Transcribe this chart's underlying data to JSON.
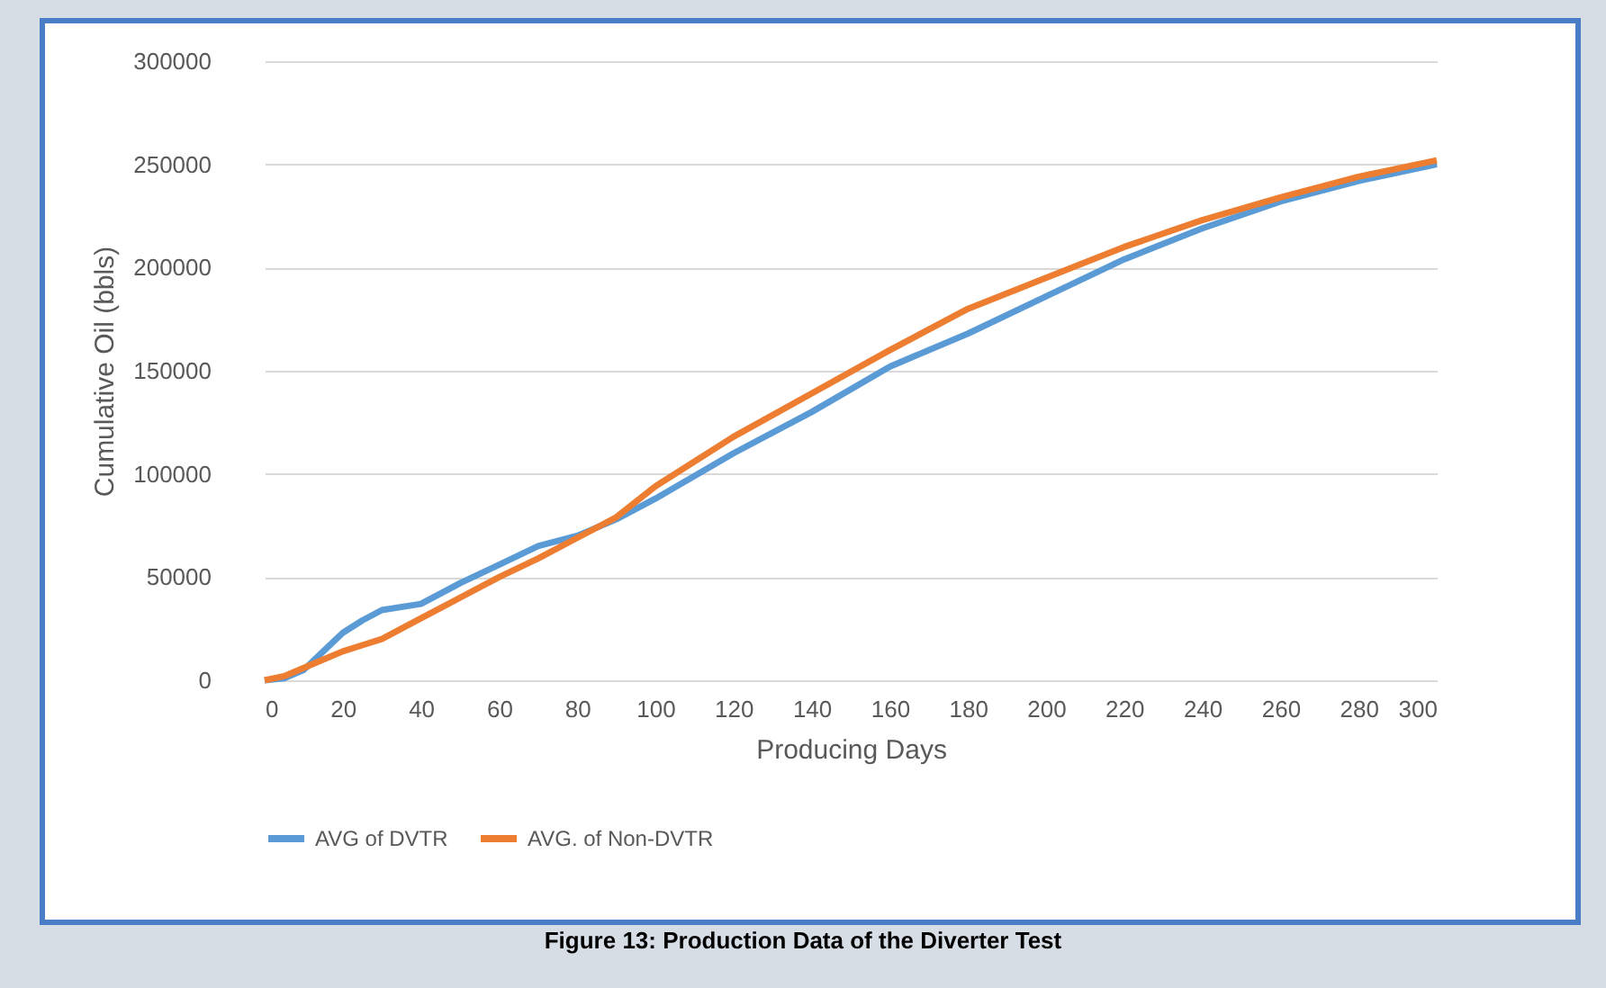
{
  "chart_data": {
    "type": "line",
    "xlabel": "Producing Days",
    "ylabel": "Cumulative Oil (bbls)",
    "xlim": [
      0,
      300
    ],
    "xticks": [
      0,
      20,
      40,
      60,
      80,
      100,
      120,
      140,
      160,
      180,
      200,
      220,
      240,
      260,
      280,
      300
    ],
    "ylim": [
      0,
      300000
    ],
    "yticks": [
      0,
      50000,
      100000,
      150000,
      200000,
      250000,
      300000
    ],
    "grid": "y",
    "legend": "bottom",
    "marker": "none",
    "line_style": "solid",
    "annotations": [
      "Figure 13: Production Data of the Diverter Test"
    ],
    "x": [
      0,
      5,
      10,
      15,
      20,
      25,
      30,
      40,
      50,
      60,
      70,
      80,
      90,
      100,
      120,
      140,
      160,
      180,
      200,
      220,
      240,
      260,
      280,
      300
    ],
    "series": [
      {
        "name": "AVG of DVTR",
        "color": "#5b9bd5",
        "values": [
          0,
          1000,
          5000,
          14000,
          23000,
          29000,
          34000,
          37000,
          47000,
          56000,
          65000,
          70000,
          78000,
          88000,
          110000,
          130000,
          152000,
          168000,
          186000,
          204000,
          219000,
          232000,
          242000,
          250000
        ]
      },
      {
        "name": "AVG. of Non-DVTR",
        "color": "#ed7d31",
        "values": [
          0,
          2000,
          6000,
          10000,
          14000,
          17000,
          20000,
          30000,
          40000,
          50000,
          59000,
          69000,
          79000,
          94000,
          118000,
          139000,
          160000,
          180000,
          195000,
          210000,
          223000,
          234000,
          244000,
          252000
        ]
      }
    ]
  }
}
